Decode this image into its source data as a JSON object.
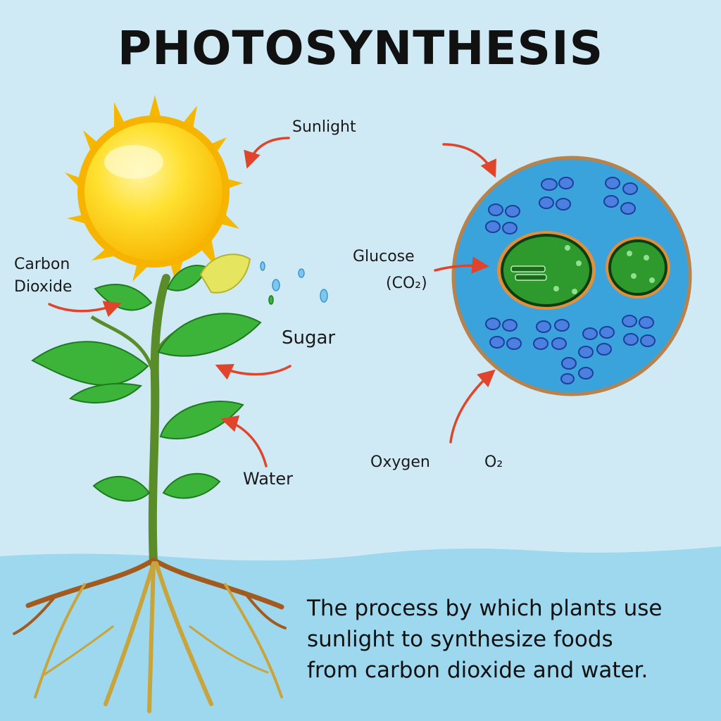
{
  "title": "PHOTOSYNTHESIS",
  "labels": {
    "sunlight": "Sunlight",
    "carbon_dioxide_line1": "Carbon",
    "carbon_dioxide_line2": "Dioxide",
    "sugar": "Sugar",
    "water": "Water",
    "glucose_line1": "Glucose",
    "glucose_line2": "(CO₂)",
    "oxygen": "Oxygen",
    "oxygen_formula": "O₂"
  },
  "caption": {
    "line1": "The process by which plants use",
    "line2": "sunlight to synthesize foods",
    "line3": "from carbon dioxide and water."
  },
  "colors": {
    "sky": "#cfeaf5",
    "water": "#9dd8ef",
    "sun": "#ffd21f",
    "sun_rays": "#f5b800",
    "leaf": "#3cb43a",
    "stem": "#5a8c2a",
    "root": "#a35a1e",
    "arrow": "#e0452b",
    "cell": "#3aa3dc",
    "cell_border": "#b9824a",
    "chloroplast": "#2e9a2e"
  }
}
